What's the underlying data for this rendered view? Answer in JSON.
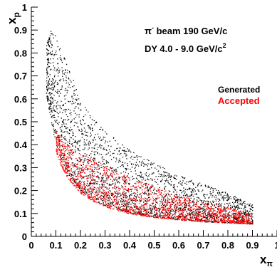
{
  "chart_data": {
    "type": "scatter",
    "title": "",
    "xlabel": "x",
    "xlabel_sub": "π",
    "ylabel": "x",
    "ylabel_sub": "p",
    "xlim": [
      0,
      1
    ],
    "ylim": [
      0,
      1
    ],
    "x_ticks": [
      "0",
      "0.1",
      "0.2",
      "0.3",
      "0.4",
      "0.5",
      "0.6",
      "0.7",
      "0.8",
      "0.9",
      "1"
    ],
    "y_ticks": [
      "0",
      "0.1",
      "0.2",
      "0.3",
      "0.4",
      "0.5",
      "0.6",
      "0.7",
      "0.8",
      "0.9",
      "1"
    ],
    "grid": false,
    "legend_position": "right",
    "annotations": {
      "beam_prefix": "π",
      "beam_sup": "-",
      "beam_rest": " beam 190 GeV/c",
      "dy_prefix": "DY 4.0 - 9.0 GeV/c",
      "dy_sup": "2"
    },
    "series": [
      {
        "name": "Generated",
        "color": "#000000",
        "x": [
          0.06,
          0.07,
          0.08,
          0.1,
          0.12,
          0.15,
          0.2,
          0.25,
          0.3,
          0.4,
          0.5,
          0.6,
          0.7,
          0.8,
          0.9
        ],
        "y_min": [
          0.62,
          0.56,
          0.49,
          0.4,
          0.33,
          0.27,
          0.2,
          0.16,
          0.135,
          0.105,
          0.085,
          0.075,
          0.065,
          0.06,
          0.055
        ],
        "y_max": [
          0.84,
          0.88,
          0.9,
          0.88,
          0.82,
          0.74,
          0.6,
          0.52,
          0.46,
          0.38,
          0.32,
          0.27,
          0.23,
          0.19,
          0.14
        ]
      },
      {
        "name": "Accepted",
        "color": "#ff0000",
        "x": [
          0.1,
          0.12,
          0.15,
          0.2,
          0.25,
          0.3,
          0.4,
          0.5,
          0.6,
          0.7,
          0.8,
          0.9
        ],
        "y_min": [
          0.37,
          0.31,
          0.25,
          0.19,
          0.155,
          0.13,
          0.1,
          0.083,
          0.073,
          0.065,
          0.06,
          0.055
        ],
        "y_max": [
          0.46,
          0.43,
          0.4,
          0.36,
          0.34,
          0.31,
          0.26,
          0.22,
          0.18,
          0.15,
          0.13,
          0.1
        ]
      }
    ]
  }
}
